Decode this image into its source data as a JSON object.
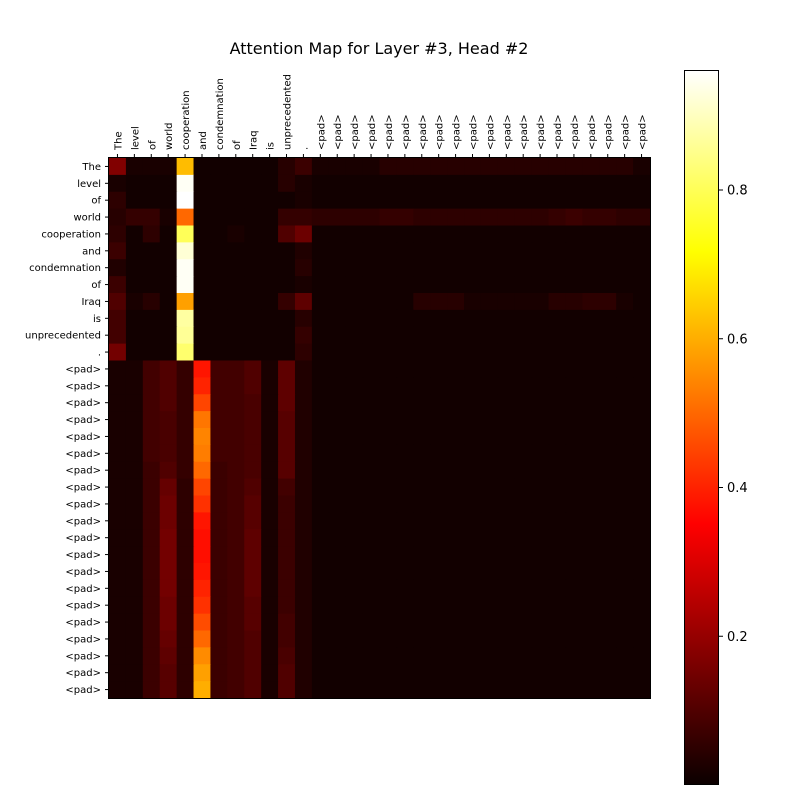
{
  "chart_data": {
    "type": "heatmap",
    "title": "Attention Map for Layer #3, Head #2",
    "x_labels": [
      "The",
      "level",
      "of",
      "world",
      "cooperation",
      "and",
      "condemnation",
      "of",
      "Iraq",
      "is",
      "unprecedented",
      ".",
      "<pad>",
      "<pad>",
      "<pad>",
      "<pad>",
      "<pad>",
      "<pad>",
      "<pad>",
      "<pad>",
      "<pad>",
      "<pad>",
      "<pad>",
      "<pad>",
      "<pad>",
      "<pad>",
      "<pad>",
      "<pad>",
      "<pad>",
      "<pad>",
      "<pad>",
      "<pad>"
    ],
    "y_labels": [
      "The",
      "level",
      "of",
      "world",
      "cooperation",
      "and",
      "condemnation",
      "of",
      "Iraq",
      "is",
      "unprecedented",
      ".",
      "<pad>",
      "<pad>",
      "<pad>",
      "<pad>",
      "<pad>",
      "<pad>",
      "<pad>",
      "<pad>",
      "<pad>",
      "<pad>",
      "<pad>",
      "<pad>",
      "<pad>",
      "<pad>",
      "<pad>",
      "<pad>",
      "<pad>",
      "<pad>",
      "<pad>",
      "<pad>"
    ],
    "colormap": "hot",
    "vmin": 0.0,
    "vmax": 0.96,
    "colorbar_ticks": [
      0.2,
      0.4,
      0.6,
      0.8
    ],
    "colorbar_tick_labels": [
      "0.2",
      "0.4",
      "0.6",
      "0.8"
    ],
    "values": [
      [
        0.17,
        0.02,
        0.02,
        0.02,
        0.62,
        0.01,
        0.01,
        0.01,
        0.01,
        0.01,
        0.04,
        0.07,
        0.02,
        0.02,
        0.02,
        0.02,
        0.04,
        0.04,
        0.04,
        0.04,
        0.04,
        0.04,
        0.04,
        0.04,
        0.04,
        0.04,
        0.04,
        0.04,
        0.04,
        0.04,
        0.04,
        0.02
      ],
      [
        0.02,
        0.01,
        0.01,
        0.01,
        0.95,
        0.01,
        0.01,
        0.01,
        0.01,
        0.01,
        0.04,
        0.02,
        0.01,
        0.01,
        0.01,
        0.01,
        0.01,
        0.01,
        0.01,
        0.01,
        0.01,
        0.01,
        0.01,
        0.01,
        0.01,
        0.01,
        0.01,
        0.01,
        0.01,
        0.01,
        0.01,
        0.01
      ],
      [
        0.05,
        0.01,
        0.01,
        0.01,
        0.96,
        0.01,
        0.01,
        0.01,
        0.01,
        0.01,
        0.01,
        0.02,
        0.01,
        0.01,
        0.01,
        0.01,
        0.01,
        0.01,
        0.01,
        0.01,
        0.01,
        0.01,
        0.01,
        0.01,
        0.01,
        0.01,
        0.01,
        0.01,
        0.01,
        0.01,
        0.01,
        0.01
      ],
      [
        0.04,
        0.06,
        0.06,
        0.02,
        0.5,
        0.01,
        0.01,
        0.01,
        0.01,
        0.01,
        0.06,
        0.06,
        0.05,
        0.05,
        0.05,
        0.05,
        0.06,
        0.06,
        0.05,
        0.05,
        0.05,
        0.05,
        0.05,
        0.05,
        0.05,
        0.05,
        0.06,
        0.07,
        0.06,
        0.06,
        0.05,
        0.05
      ],
      [
        0.05,
        0.01,
        0.05,
        0.01,
        0.8,
        0.01,
        0.01,
        0.02,
        0.01,
        0.01,
        0.1,
        0.14,
        0.01,
        0.01,
        0.01,
        0.01,
        0.01,
        0.01,
        0.01,
        0.01,
        0.01,
        0.01,
        0.01,
        0.01,
        0.01,
        0.01,
        0.01,
        0.01,
        0.01,
        0.01,
        0.01,
        0.01
      ],
      [
        0.07,
        0.01,
        0.01,
        0.01,
        0.92,
        0.01,
        0.01,
        0.01,
        0.01,
        0.01,
        0.01,
        0.03,
        0.01,
        0.01,
        0.01,
        0.01,
        0.01,
        0.01,
        0.01,
        0.01,
        0.01,
        0.01,
        0.01,
        0.01,
        0.01,
        0.01,
        0.01,
        0.01,
        0.01,
        0.01,
        0.01,
        0.01
      ],
      [
        0.03,
        0.01,
        0.01,
        0.01,
        0.95,
        0.01,
        0.01,
        0.01,
        0.01,
        0.01,
        0.01,
        0.04,
        0.01,
        0.01,
        0.01,
        0.01,
        0.01,
        0.01,
        0.01,
        0.01,
        0.01,
        0.01,
        0.01,
        0.01,
        0.01,
        0.01,
        0.01,
        0.01,
        0.01,
        0.01,
        0.01,
        0.01
      ],
      [
        0.07,
        0.01,
        0.01,
        0.01,
        0.95,
        0.01,
        0.01,
        0.01,
        0.01,
        0.01,
        0.01,
        0.02,
        0.01,
        0.01,
        0.01,
        0.01,
        0.01,
        0.01,
        0.01,
        0.01,
        0.01,
        0.01,
        0.01,
        0.01,
        0.01,
        0.01,
        0.01,
        0.01,
        0.01,
        0.01,
        0.01,
        0.01
      ],
      [
        0.1,
        0.02,
        0.04,
        0.01,
        0.58,
        0.01,
        0.01,
        0.01,
        0.01,
        0.01,
        0.06,
        0.12,
        0.01,
        0.01,
        0.01,
        0.01,
        0.01,
        0.01,
        0.04,
        0.04,
        0.04,
        0.02,
        0.02,
        0.02,
        0.02,
        0.02,
        0.04,
        0.04,
        0.05,
        0.05,
        0.02,
        0.01
      ],
      [
        0.08,
        0.01,
        0.01,
        0.01,
        0.87,
        0.01,
        0.01,
        0.01,
        0.01,
        0.01,
        0.01,
        0.04,
        0.01,
        0.01,
        0.01,
        0.01,
        0.01,
        0.01,
        0.01,
        0.01,
        0.01,
        0.01,
        0.01,
        0.01,
        0.01,
        0.01,
        0.01,
        0.01,
        0.01,
        0.01,
        0.01,
        0.01
      ],
      [
        0.08,
        0.01,
        0.01,
        0.01,
        0.86,
        0.01,
        0.01,
        0.01,
        0.01,
        0.01,
        0.01,
        0.06,
        0.01,
        0.01,
        0.01,
        0.01,
        0.01,
        0.01,
        0.01,
        0.01,
        0.01,
        0.01,
        0.01,
        0.01,
        0.01,
        0.01,
        0.01,
        0.01,
        0.01,
        0.01,
        0.01,
        0.01
      ],
      [
        0.15,
        0.01,
        0.01,
        0.01,
        0.82,
        0.01,
        0.01,
        0.01,
        0.01,
        0.01,
        0.01,
        0.05,
        0.01,
        0.01,
        0.01,
        0.01,
        0.01,
        0.01,
        0.01,
        0.01,
        0.01,
        0.01,
        0.01,
        0.01,
        0.01,
        0.01,
        0.01,
        0.01,
        0.01,
        0.01,
        0.01,
        0.01
      ],
      [
        0.02,
        0.02,
        0.08,
        0.1,
        0.06,
        0.38,
        0.08,
        0.08,
        0.1,
        0.02,
        0.12,
        0.03,
        0.01,
        0.01,
        0.01,
        0.01,
        0.01,
        0.01,
        0.01,
        0.01,
        0.01,
        0.01,
        0.01,
        0.01,
        0.01,
        0.01,
        0.01,
        0.01,
        0.01,
        0.01,
        0.01,
        0.01
      ],
      [
        0.02,
        0.02,
        0.08,
        0.1,
        0.06,
        0.4,
        0.08,
        0.08,
        0.1,
        0.02,
        0.12,
        0.03,
        0.01,
        0.01,
        0.01,
        0.01,
        0.01,
        0.01,
        0.01,
        0.01,
        0.01,
        0.01,
        0.01,
        0.01,
        0.01,
        0.01,
        0.01,
        0.01,
        0.01,
        0.01,
        0.01,
        0.01
      ],
      [
        0.02,
        0.02,
        0.08,
        0.1,
        0.06,
        0.45,
        0.08,
        0.08,
        0.09,
        0.02,
        0.12,
        0.03,
        0.01,
        0.01,
        0.01,
        0.01,
        0.01,
        0.01,
        0.01,
        0.01,
        0.01,
        0.01,
        0.01,
        0.01,
        0.01,
        0.01,
        0.01,
        0.01,
        0.01,
        0.01,
        0.01,
        0.01
      ],
      [
        0.02,
        0.02,
        0.08,
        0.09,
        0.06,
        0.52,
        0.08,
        0.08,
        0.09,
        0.02,
        0.11,
        0.03,
        0.01,
        0.01,
        0.01,
        0.01,
        0.01,
        0.01,
        0.01,
        0.01,
        0.01,
        0.01,
        0.01,
        0.01,
        0.01,
        0.01,
        0.01,
        0.01,
        0.01,
        0.01,
        0.01,
        0.01
      ],
      [
        0.02,
        0.02,
        0.08,
        0.09,
        0.06,
        0.54,
        0.08,
        0.08,
        0.09,
        0.02,
        0.11,
        0.03,
        0.01,
        0.01,
        0.01,
        0.01,
        0.01,
        0.01,
        0.01,
        0.01,
        0.01,
        0.01,
        0.01,
        0.01,
        0.01,
        0.01,
        0.01,
        0.01,
        0.01,
        0.01,
        0.01,
        0.01
      ],
      [
        0.02,
        0.02,
        0.08,
        0.09,
        0.06,
        0.53,
        0.08,
        0.08,
        0.09,
        0.02,
        0.11,
        0.03,
        0.01,
        0.01,
        0.01,
        0.01,
        0.01,
        0.01,
        0.01,
        0.01,
        0.01,
        0.01,
        0.01,
        0.01,
        0.01,
        0.01,
        0.01,
        0.01,
        0.01,
        0.01,
        0.01,
        0.01
      ],
      [
        0.02,
        0.02,
        0.07,
        0.1,
        0.06,
        0.5,
        0.07,
        0.08,
        0.09,
        0.02,
        0.11,
        0.03,
        0.01,
        0.01,
        0.01,
        0.01,
        0.01,
        0.01,
        0.01,
        0.01,
        0.01,
        0.01,
        0.01,
        0.01,
        0.01,
        0.01,
        0.01,
        0.01,
        0.01,
        0.01,
        0.01,
        0.01
      ],
      [
        0.02,
        0.02,
        0.07,
        0.13,
        0.05,
        0.45,
        0.07,
        0.08,
        0.1,
        0.02,
        0.08,
        0.03,
        0.01,
        0.01,
        0.01,
        0.01,
        0.01,
        0.01,
        0.01,
        0.01,
        0.01,
        0.01,
        0.01,
        0.01,
        0.01,
        0.01,
        0.01,
        0.01,
        0.01,
        0.01,
        0.01,
        0.01
      ],
      [
        0.02,
        0.02,
        0.07,
        0.14,
        0.05,
        0.42,
        0.07,
        0.08,
        0.11,
        0.02,
        0.07,
        0.03,
        0.01,
        0.01,
        0.01,
        0.01,
        0.01,
        0.01,
        0.01,
        0.01,
        0.01,
        0.01,
        0.01,
        0.01,
        0.01,
        0.01,
        0.01,
        0.01,
        0.01,
        0.01,
        0.01,
        0.01
      ],
      [
        0.02,
        0.02,
        0.07,
        0.14,
        0.05,
        0.38,
        0.07,
        0.08,
        0.11,
        0.02,
        0.07,
        0.03,
        0.01,
        0.01,
        0.01,
        0.01,
        0.01,
        0.01,
        0.01,
        0.01,
        0.01,
        0.01,
        0.01,
        0.01,
        0.01,
        0.01,
        0.01,
        0.01,
        0.01,
        0.01,
        0.01,
        0.01
      ],
      [
        0.02,
        0.02,
        0.07,
        0.15,
        0.05,
        0.37,
        0.07,
        0.08,
        0.12,
        0.02,
        0.07,
        0.03,
        0.01,
        0.01,
        0.01,
        0.01,
        0.01,
        0.01,
        0.01,
        0.01,
        0.01,
        0.01,
        0.01,
        0.01,
        0.01,
        0.01,
        0.01,
        0.01,
        0.01,
        0.01,
        0.01,
        0.01
      ],
      [
        0.02,
        0.02,
        0.07,
        0.15,
        0.05,
        0.37,
        0.07,
        0.08,
        0.12,
        0.02,
        0.07,
        0.03,
        0.01,
        0.01,
        0.01,
        0.01,
        0.01,
        0.01,
        0.01,
        0.01,
        0.01,
        0.01,
        0.01,
        0.01,
        0.01,
        0.01,
        0.01,
        0.01,
        0.01,
        0.01,
        0.01,
        0.01
      ],
      [
        0.02,
        0.02,
        0.07,
        0.15,
        0.05,
        0.38,
        0.07,
        0.08,
        0.12,
        0.02,
        0.07,
        0.03,
        0.01,
        0.01,
        0.01,
        0.01,
        0.01,
        0.01,
        0.01,
        0.01,
        0.01,
        0.01,
        0.01,
        0.01,
        0.01,
        0.01,
        0.01,
        0.01,
        0.01,
        0.01,
        0.01,
        0.01
      ],
      [
        0.02,
        0.02,
        0.07,
        0.15,
        0.05,
        0.4,
        0.07,
        0.08,
        0.12,
        0.02,
        0.07,
        0.03,
        0.01,
        0.01,
        0.01,
        0.01,
        0.01,
        0.01,
        0.01,
        0.01,
        0.01,
        0.01,
        0.01,
        0.01,
        0.01,
        0.01,
        0.01,
        0.01,
        0.01,
        0.01,
        0.01,
        0.01
      ],
      [
        0.02,
        0.02,
        0.07,
        0.14,
        0.05,
        0.42,
        0.07,
        0.08,
        0.11,
        0.02,
        0.07,
        0.03,
        0.01,
        0.01,
        0.01,
        0.01,
        0.01,
        0.01,
        0.01,
        0.01,
        0.01,
        0.01,
        0.01,
        0.01,
        0.01,
        0.01,
        0.01,
        0.01,
        0.01,
        0.01,
        0.01,
        0.01
      ],
      [
        0.02,
        0.02,
        0.07,
        0.14,
        0.05,
        0.46,
        0.07,
        0.08,
        0.11,
        0.02,
        0.08,
        0.03,
        0.01,
        0.01,
        0.01,
        0.01,
        0.01,
        0.01,
        0.01,
        0.01,
        0.01,
        0.01,
        0.01,
        0.01,
        0.01,
        0.01,
        0.01,
        0.01,
        0.01,
        0.01,
        0.01,
        0.01
      ],
      [
        0.02,
        0.02,
        0.07,
        0.13,
        0.05,
        0.5,
        0.07,
        0.08,
        0.1,
        0.02,
        0.08,
        0.03,
        0.01,
        0.01,
        0.01,
        0.01,
        0.01,
        0.01,
        0.01,
        0.01,
        0.01,
        0.01,
        0.01,
        0.01,
        0.01,
        0.01,
        0.01,
        0.01,
        0.01,
        0.01,
        0.01,
        0.01
      ],
      [
        0.02,
        0.02,
        0.07,
        0.12,
        0.05,
        0.55,
        0.07,
        0.08,
        0.1,
        0.02,
        0.09,
        0.03,
        0.01,
        0.01,
        0.01,
        0.01,
        0.01,
        0.01,
        0.01,
        0.01,
        0.01,
        0.01,
        0.01,
        0.01,
        0.01,
        0.01,
        0.01,
        0.01,
        0.01,
        0.01,
        0.01,
        0.01
      ],
      [
        0.02,
        0.02,
        0.07,
        0.11,
        0.05,
        0.58,
        0.07,
        0.08,
        0.1,
        0.02,
        0.1,
        0.03,
        0.01,
        0.01,
        0.01,
        0.01,
        0.01,
        0.01,
        0.01,
        0.01,
        0.01,
        0.01,
        0.01,
        0.01,
        0.01,
        0.01,
        0.01,
        0.01,
        0.01,
        0.01,
        0.01,
        0.01
      ],
      [
        0.02,
        0.02,
        0.07,
        0.11,
        0.05,
        0.6,
        0.07,
        0.08,
        0.1,
        0.02,
        0.1,
        0.03,
        0.01,
        0.01,
        0.01,
        0.01,
        0.01,
        0.01,
        0.01,
        0.01,
        0.01,
        0.01,
        0.01,
        0.01,
        0.01,
        0.01,
        0.01,
        0.01,
        0.01,
        0.01,
        0.01,
        0.01
      ]
    ]
  }
}
